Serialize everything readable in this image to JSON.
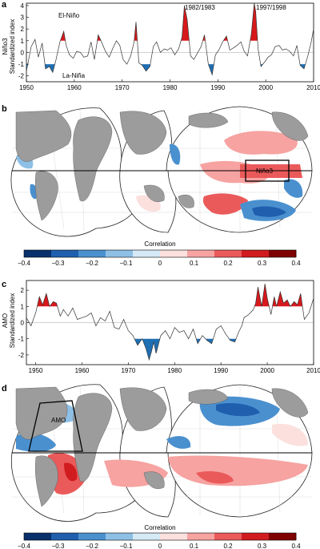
{
  "panels": {
    "a": {
      "label": "a",
      "ylabel_lines": [
        "Niño3",
        "Standardized index"
      ],
      "annotations": [
        "El-Niño",
        "La-Niña",
        "1982/1983",
        "1997/1998"
      ]
    },
    "b": {
      "label": "b",
      "box_label": "Niño3",
      "colorbar_title": "Correlation",
      "colorbar_ticks": [
        "−0.4",
        "−0.3",
        "−0.2",
        "−0.1",
        "0",
        "0.1",
        "0.2",
        "0.3",
        "0.4"
      ]
    },
    "c": {
      "label": "c",
      "ylabel_lines": [
        "AMO",
        "Standardized index"
      ]
    },
    "d": {
      "label": "d",
      "box_label": "AMO",
      "colorbar_title": "Correlation",
      "colorbar_ticks": [
        "−0.4",
        "−0.3",
        "−0.2",
        "−0.1",
        "0",
        "0.1",
        "0.2",
        "0.3",
        "0.4"
      ]
    }
  },
  "colors": {
    "positive": "#d7191c",
    "negative": "#1f6fb4",
    "land": "#9c9c9c",
    "colorbar": [
      "#08306b",
      "#1f5fae",
      "#4a90cf",
      "#8ec0e6",
      "#d6e9f6",
      "#fbe0de",
      "#f6a3a1",
      "#ea5a5a",
      "#d01c1f",
      "#7f0000"
    ]
  },
  "chart_data": [
    {
      "type": "area",
      "panel": "a",
      "xlabel": "",
      "ylabel": "Niño3 Standardized index",
      "xlim": [
        1950,
        2010
      ],
      "ylim": [
        -2.5,
        4.2
      ],
      "xticks": [
        1950,
        1960,
        1970,
        1980,
        1990,
        2000,
        2010
      ],
      "yticks": [
        -2,
        -1,
        0,
        1,
        2,
        3,
        4
      ],
      "threshold": 1,
      "x": [
        1950.0,
        1951.0,
        1951.8,
        1952.5,
        1953.3,
        1954.0,
        1954.8,
        1955.5,
        1956.2,
        1957.0,
        1957.8,
        1958.3,
        1959.0,
        1959.8,
        1960.5,
        1961.3,
        1962.0,
        1962.8,
        1963.5,
        1964.2,
        1965.0,
        1965.8,
        1966.5,
        1967.3,
        1968.0,
        1968.8,
        1969.5,
        1970.2,
        1971.0,
        1971.8,
        1972.5,
        1972.9,
        1973.5,
        1974.2,
        1975.0,
        1975.8,
        1976.5,
        1977.2,
        1978.0,
        1978.8,
        1979.5,
        1980.2,
        1981.0,
        1981.8,
        1982.5,
        1983.0,
        1983.6,
        1984.3,
        1985.0,
        1985.8,
        1986.5,
        1987.2,
        1988.0,
        1988.8,
        1989.5,
        1990.2,
        1991.0,
        1991.8,
        1992.5,
        1993.3,
        1994.0,
        1994.8,
        1995.5,
        1996.2,
        1997.0,
        1997.6,
        1997.9,
        1998.4,
        1999.0,
        1999.8,
        2000.5,
        2001.2,
        2002.0,
        2002.8,
        2003.5,
        2004.2,
        2005.0,
        2005.8,
        2006.5,
        2007.2,
        2008.0,
        2008.8,
        2009.5,
        2010.0
      ],
      "series": [
        {
          "values": [
            -1.6,
            0.5,
            1.1,
            -0.4,
            0.8,
            -1.4,
            -1.2,
            -1.7,
            -0.6,
            0.9,
            1.8,
            0.6,
            -0.2,
            -0.5,
            0.1,
            0.0,
            -0.4,
            -0.3,
            0.9,
            -0.6,
            1.5,
            0.8,
            0.1,
            -0.4,
            0.3,
            1.0,
            0.6,
            -0.6,
            -1.0,
            -0.3,
            0.9,
            2.6,
            -0.9,
            -1.1,
            -1.6,
            -1.2,
            0.5,
            0.9,
            0.0,
            0.3,
            0.2,
            0.4,
            -0.2,
            0.3,
            1.3,
            4.0,
            2.8,
            -0.3,
            -0.6,
            0.0,
            0.5,
            1.5,
            -1.0,
            -1.9,
            -0.2,
            0.2,
            0.9,
            1.4,
            0.2,
            0.4,
            0.6,
            0.9,
            0.1,
            -0.3,
            1.6,
            4.2,
            3.5,
            0.3,
            -1.2,
            -0.8,
            -0.4,
            -0.2,
            0.5,
            0.6,
            0.2,
            0.3,
            0.1,
            -0.3,
            0.6,
            -1.1,
            -1.4,
            -0.3,
            0.9,
            2.0
          ]
        }
      ]
    },
    {
      "type": "area",
      "panel": "c",
      "xlabel": "",
      "ylabel": "AMO Standardized index",
      "xlim": [
        1948,
        2010
      ],
      "ylim": [
        -2.6,
        2.6
      ],
      "xticks": [
        1950,
        1960,
        1970,
        1980,
        1990,
        2000,
        2010
      ],
      "yticks": [
        -2,
        -1,
        0,
        1,
        2
      ],
      "threshold": 1,
      "x": [
        1948.0,
        1949.0,
        1950.0,
        1950.8,
        1951.5,
        1952.3,
        1953.0,
        1953.8,
        1954.5,
        1955.3,
        1956.0,
        1957.0,
        1958.0,
        1959.0,
        1960.0,
        1961.0,
        1962.0,
        1963.0,
        1964.0,
        1965.0,
        1966.0,
        1967.0,
        1968.0,
        1969.0,
        1970.0,
        1971.0,
        1972.0,
        1973.0,
        1973.8,
        1974.5,
        1975.0,
        1975.5,
        1976.0,
        1977.0,
        1978.0,
        1979.0,
        1980.0,
        1981.0,
        1982.0,
        1983.0,
        1984.0,
        1985.0,
        1986.0,
        1987.0,
        1988.0,
        1989.0,
        1990.0,
        1991.0,
        1992.0,
        1993.0,
        1993.8,
        1994.5,
        1995.0,
        1996.0,
        1997.0,
        1997.5,
        1998.0,
        1998.8,
        1999.5,
        2000.0,
        2000.8,
        2001.5,
        2002.0,
        2002.8,
        2003.5,
        2004.3,
        2005.0,
        2005.8,
        2006.5,
        2007.2,
        2008.0,
        2009.0,
        2010.0
      ],
      "series": [
        {
          "values": [
            0.3,
            -0.2,
            0.6,
            1.6,
            1.1,
            1.8,
            1.0,
            1.3,
            1.2,
            0.4,
            0.8,
            0.4,
            0.9,
            0.2,
            0.3,
            0.4,
            0.6,
            -0.2,
            0.3,
            0.1,
            0.7,
            -0.3,
            -0.4,
            0.2,
            -0.5,
            -0.8,
            -1.4,
            -1.0,
            -1.6,
            -2.3,
            -1.8,
            -1.2,
            -1.9,
            -0.8,
            -0.5,
            -1.0,
            -0.3,
            -0.6,
            -0.5,
            -1.0,
            -0.4,
            -1.3,
            -0.8,
            -1.1,
            -1.3,
            -0.4,
            -0.2,
            -0.7,
            -1.1,
            -1.2,
            -0.6,
            -0.2,
            0.3,
            0.5,
            0.8,
            1.2,
            2.2,
            1.0,
            2.4,
            1.5,
            0.5,
            1.6,
            1.0,
            1.9,
            1.2,
            1.4,
            1.0,
            1.3,
            1.1,
            1.8,
            0.2,
            0.6,
            1.5
          ]
        }
      ]
    }
  ]
}
